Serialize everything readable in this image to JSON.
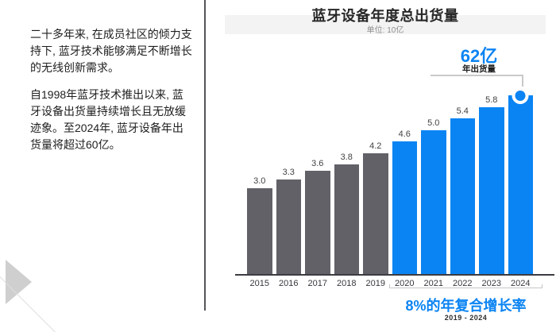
{
  "left_panel": {
    "paragraphs": [
      "二十多年来, 在成员社区的倾力支持下, 蓝牙技术能够满足不断增长的无线创新需求。",
      "自1998年蓝牙技术推出以来, 蓝牙设备出货量持续增长且无放缓迹象。至2024年, 蓝牙设备年出货量将超过60亿。"
    ]
  },
  "chart": {
    "title": "蓝牙设备年度总出货量",
    "subtitle": "单位: 10亿",
    "callout": {
      "value": "62亿",
      "label": "年出货量"
    },
    "cagr": {
      "headline": "8%的年复合增长率",
      "range": "2019 - 2024"
    }
  },
  "chart_data": {
    "type": "bar",
    "title": "蓝牙设备年度总出货量",
    "subtitle_unit": "单位: 10亿",
    "categories": [
      "2015",
      "2016",
      "2017",
      "2018",
      "2019",
      "2020",
      "2021",
      "2022",
      "2023",
      "2024"
    ],
    "values": [
      3.0,
      3.3,
      3.6,
      3.8,
      4.2,
      4.6,
      5.0,
      5.4,
      5.8,
      6.2
    ],
    "bar_labels": [
      "3.0",
      "3.3",
      "3.6",
      "3.8",
      "4.2",
      "4.6",
      "5.0",
      "5.4",
      "5.8",
      ""
    ],
    "highlight_start_index": 5,
    "marker_category": "2024",
    "colors": {
      "past": "#616167",
      "forecast": "#0b84f3",
      "marker_ring": "#ffffff",
      "marker_dot": "#0b84f3"
    },
    "annotations": {
      "peak_value": "62亿",
      "peak_label": "年出货量",
      "cagr": "8%的年复合增长率",
      "cagr_range": "2019 - 2024"
    },
    "ylim": [
      0,
      6.5
    ],
    "grid": false,
    "legend": "none"
  }
}
